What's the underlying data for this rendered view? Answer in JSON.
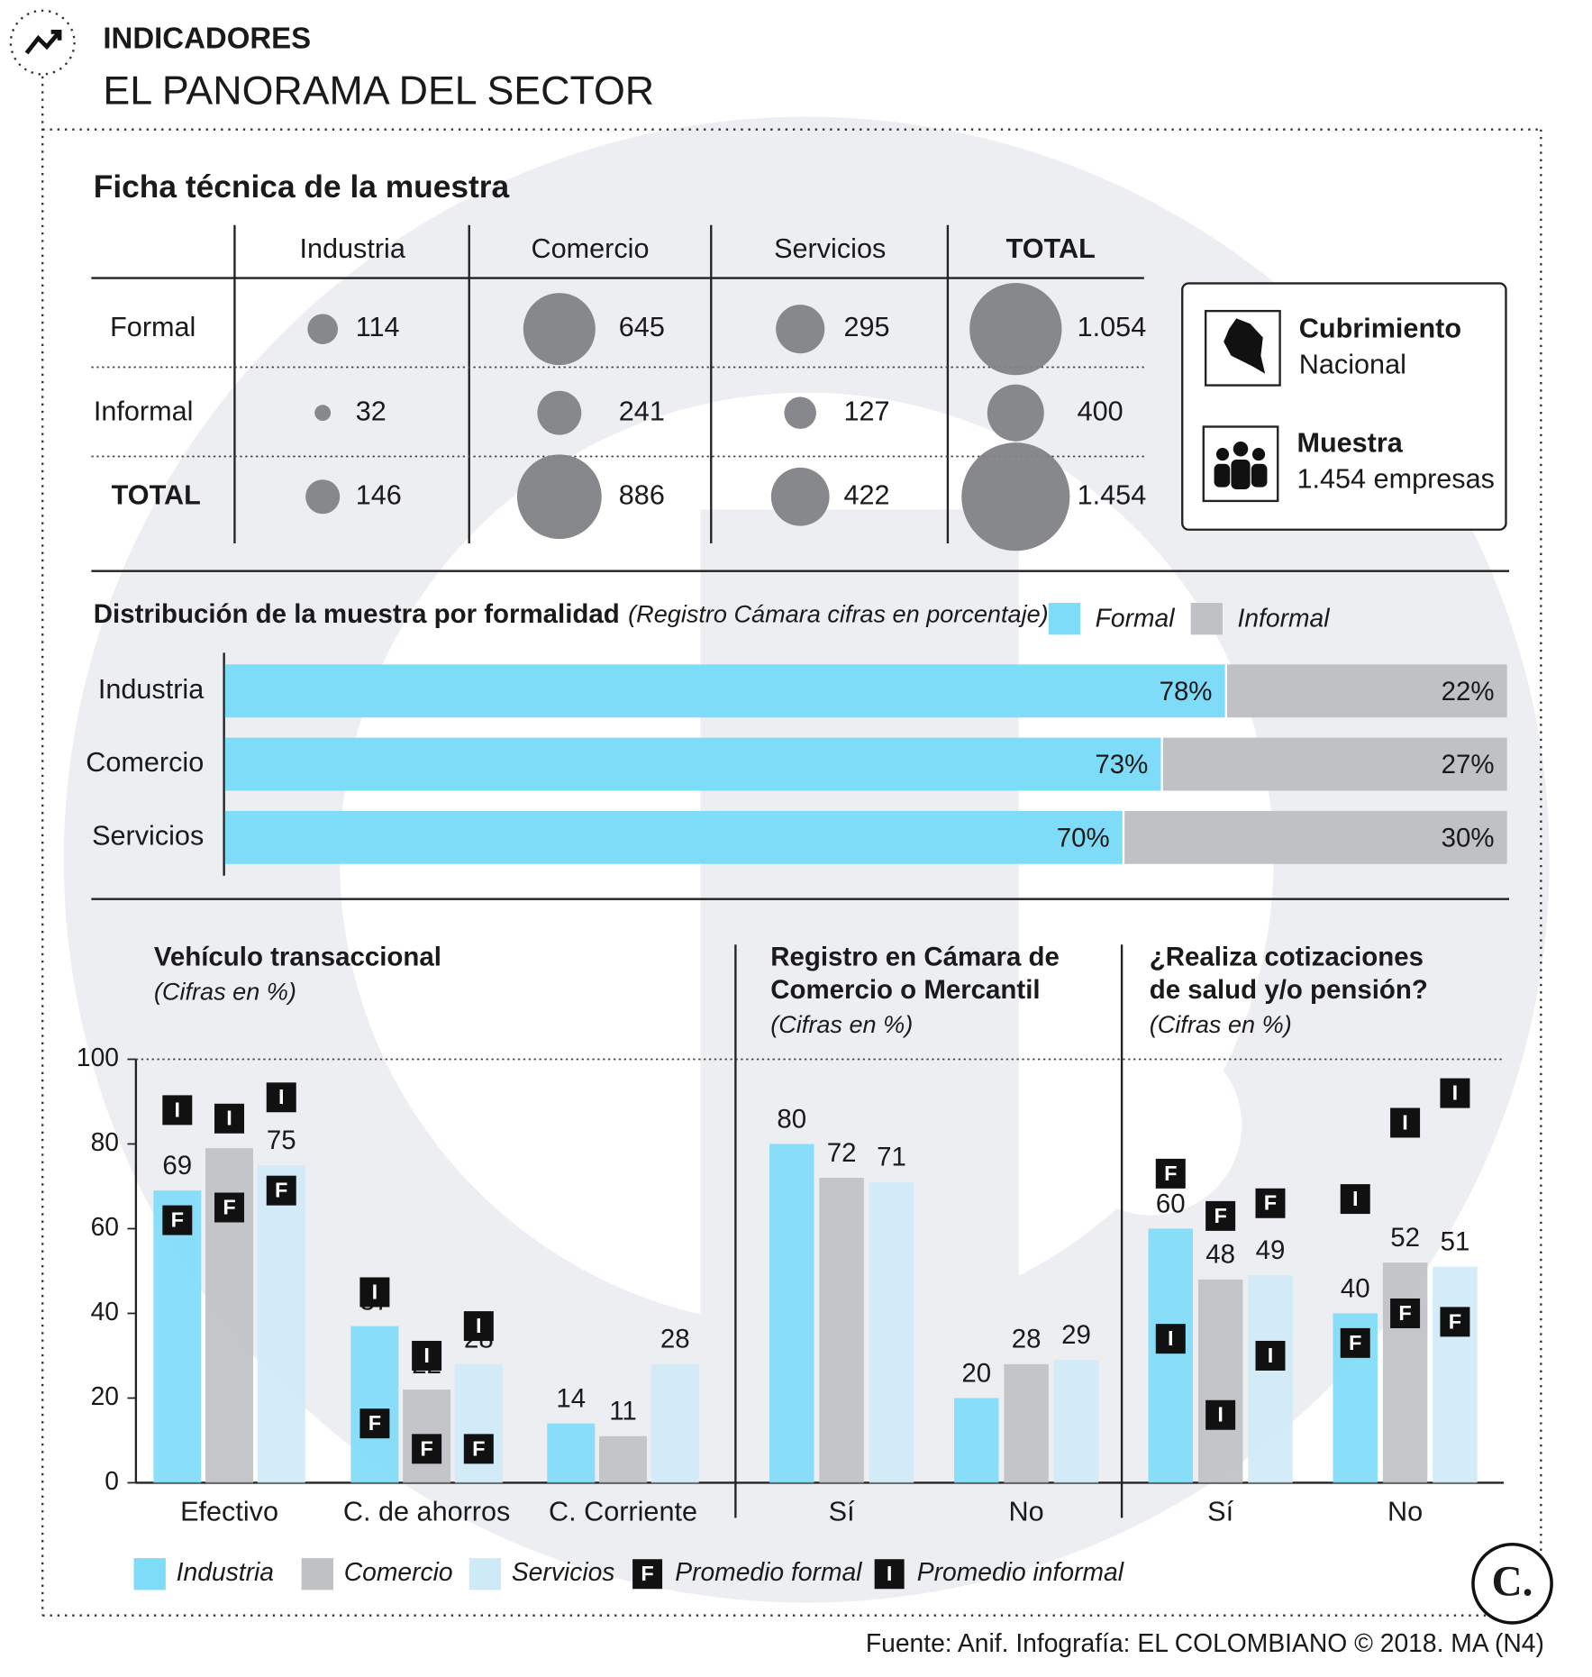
{
  "header": {
    "kicker": "INDICADORES",
    "title": "EL PANORAMA DEL SECTOR"
  },
  "sample_table": {
    "title": "Ficha técnica de la muestra",
    "columns": [
      "Industria",
      "Comercio",
      "Servicios",
      "TOTAL"
    ],
    "rows": [
      {
        "label": "Formal",
        "values": [
          114,
          645,
          295,
          1054
        ],
        "value_labels": [
          "114",
          "645",
          "295",
          "1.054"
        ]
      },
      {
        "label": "Informal",
        "values": [
          32,
          241,
          127,
          400
        ],
        "value_labels": [
          "32",
          "241",
          "127",
          "400"
        ]
      },
      {
        "label": "TOTAL",
        "values": [
          146,
          886,
          422,
          1454
        ],
        "value_labels": [
          "146",
          "886",
          "422",
          "1.454"
        ]
      }
    ],
    "color": "#818286"
  },
  "info": {
    "coverage_title": "Cubrimiento",
    "coverage_value": "Nacional",
    "sample_title": "Muestra",
    "sample_value": "1.454 empresas"
  },
  "chart_data": [
    {
      "type": "bar",
      "orientation": "horizontal",
      "stacked": true,
      "title": "Distribución de la muestra por formalidad",
      "subtitle": "(Registro Cámara cifras en porcentaje)",
      "categories": [
        "Industria",
        "Comercio",
        "Servicios"
      ],
      "xlim": [
        0,
        100
      ],
      "series": [
        {
          "name": "Formal",
          "color": "#7fdcf8",
          "values": [
            78,
            73,
            70
          ],
          "value_labels": [
            "78%",
            "73%",
            "70%"
          ]
        },
        {
          "name": "Informal",
          "color": "#c0c1c4",
          "values": [
            22,
            27,
            30
          ],
          "value_labels": [
            "22%",
            "27%",
            "30%"
          ]
        }
      ]
    },
    {
      "type": "bar",
      "title": [
        "Vehículo transaccional"
      ],
      "subtitle": "(Cifras en %)",
      "categories": [
        "Efectivo",
        "C. de ahorros",
        "C. Corriente"
      ],
      "ylim": [
        0,
        100
      ],
      "yticks": [
        0,
        20,
        40,
        60,
        80,
        100
      ],
      "series": [
        {
          "name": "Industria",
          "color": "#7fdcf8",
          "values": [
            69,
            37,
            14
          ]
        },
        {
          "name": "Comercio",
          "color": "#c0c1c4",
          "values": [
            79,
            22,
            11
          ]
        },
        {
          "name": "Servicios",
          "color": "#cfeaf7",
          "values": [
            75,
            28,
            28
          ]
        }
      ],
      "markers": [
        {
          "name": "Promedio formal",
          "symbol": "F",
          "values": [
            [
              62,
              65,
              69
            ],
            [
              14,
              8,
              8
            ],
            [
              null,
              null,
              null
            ]
          ]
        },
        {
          "name": "Promedio informal",
          "symbol": "I",
          "values": [
            [
              88,
              86,
              91
            ],
            [
              45,
              30,
              37
            ],
            [
              null,
              null,
              null
            ]
          ]
        }
      ]
    },
    {
      "type": "bar",
      "title": [
        "Registro en Cámara de",
        "Comercio o Mercantil"
      ],
      "subtitle": "(Cifras en %)",
      "categories": [
        "Sí",
        "No"
      ],
      "ylim": [
        0,
        100
      ],
      "series": [
        {
          "name": "Industria",
          "color": "#7fdcf8",
          "values": [
            80,
            20
          ]
        },
        {
          "name": "Comercio",
          "color": "#c0c1c4",
          "values": [
            72,
            28
          ]
        },
        {
          "name": "Servicios",
          "color": "#cfeaf7",
          "values": [
            71,
            29
          ]
        }
      ]
    },
    {
      "type": "bar",
      "title": [
        "¿Realiza cotizaciones",
        "de salud y/o pensión?"
      ],
      "subtitle": "(Cifras en %)",
      "categories": [
        "Sí",
        "No"
      ],
      "ylim": [
        0,
        100
      ],
      "series": [
        {
          "name": "Industria",
          "color": "#7fdcf8",
          "values": [
            60,
            40
          ]
        },
        {
          "name": "Comercio",
          "color": "#c0c1c4",
          "values": [
            48,
            52
          ]
        },
        {
          "name": "Servicios",
          "color": "#cfeaf7",
          "values": [
            49,
            51
          ]
        }
      ],
      "markers": [
        {
          "name": "Promedio formal",
          "symbol": "F",
          "values": [
            [
              73,
              63,
              66
            ],
            [
              33,
              40,
              38
            ]
          ]
        },
        {
          "name": "Promedio informal",
          "symbol": "I",
          "values": [
            [
              34,
              16,
              30
            ],
            [
              67,
              85,
              92
            ]
          ]
        }
      ]
    }
  ],
  "footer": {
    "source": "Fuente: Anif. Infografía: EL COLOMBIANO © 2018. MA (N4)",
    "logo": "C."
  }
}
